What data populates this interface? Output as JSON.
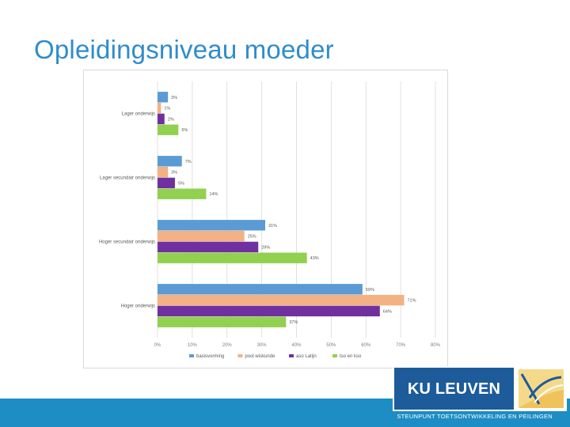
{
  "slide": {
    "title": "Opleidingsniveau moeder",
    "footer": "STEUNPUNT TOETSONTWIKKELING EN PEILINGEN",
    "logo_text": "KU LEUVEN"
  },
  "colors": {
    "title": "#2f8ccc",
    "footer_bar": "#1d8dc4",
    "logo_bg": "#1d5b9a"
  },
  "chart_data": {
    "type": "bar",
    "orientation": "horizontal",
    "categories": [
      "Lager onderwijs",
      "Lager secundair onderwijs",
      "Hoger secundair onderwijs",
      "Hoger onderwijs"
    ],
    "series": [
      {
        "name": "basisvorming",
        "color": "#5b9bd5",
        "values": [
          3,
          7,
          31,
          59
        ],
        "labels": [
          "3%",
          "7%",
          "31%",
          "59%"
        ]
      },
      {
        "name": "pool wiskunde",
        "color": "#f4b183",
        "values": [
          1,
          3,
          25,
          71
        ],
        "labels": [
          "1%",
          "3%",
          "25%",
          "71%"
        ]
      },
      {
        "name": "aso Latijn",
        "color": "#7030a0",
        "values": [
          2,
          5,
          29,
          64
        ],
        "labels": [
          "2%",
          "5%",
          "29%",
          "64%"
        ]
      },
      {
        "name": "tso en kso",
        "color": "#92d050",
        "values": [
          6,
          14,
          43,
          37
        ],
        "labels": [
          "6%",
          "14%",
          "43%",
          "37%"
        ]
      }
    ],
    "xticks": [
      "0%",
      "10%",
      "20%",
      "30%",
      "40%",
      "50%",
      "60%",
      "70%",
      "80%"
    ],
    "xlim": [
      0,
      80
    ],
    "grid": true,
    "legend_position": "bottom"
  }
}
